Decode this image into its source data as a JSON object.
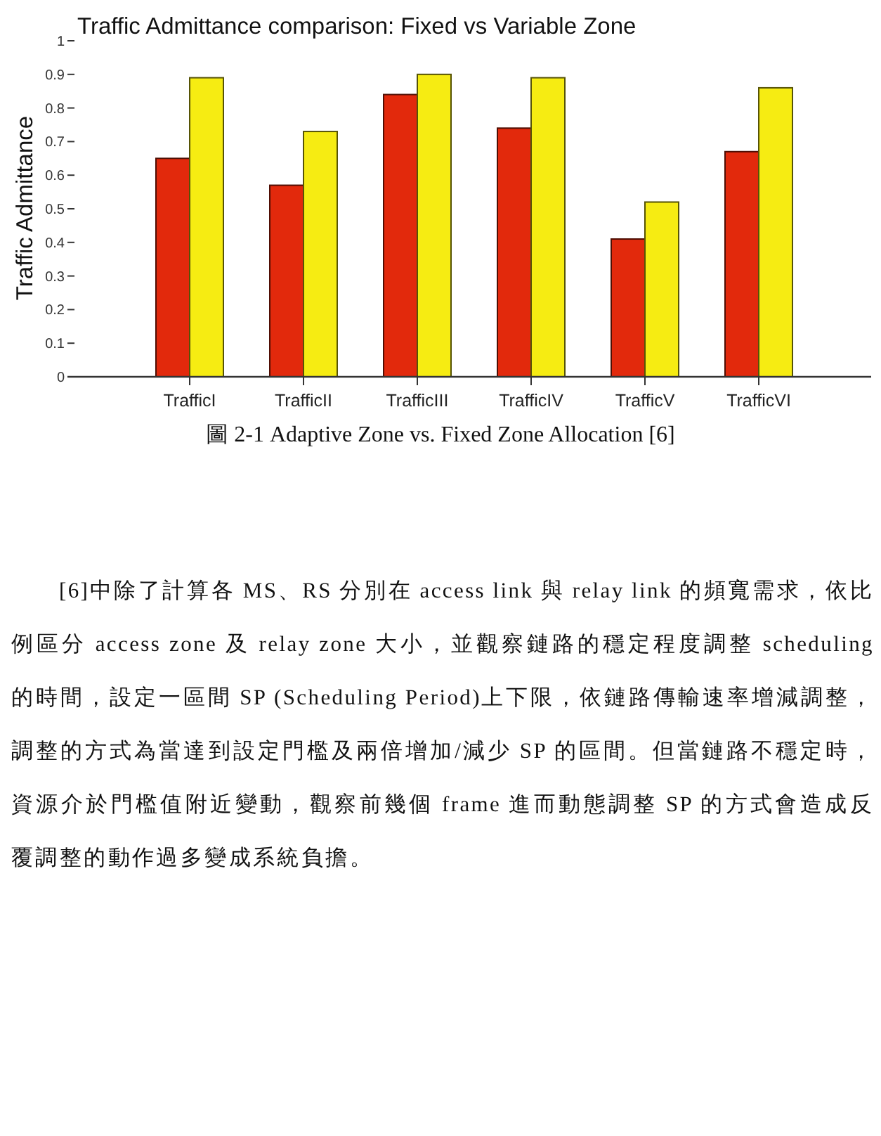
{
  "chart_data": {
    "type": "bar",
    "title": "Traffic Admittance comparison: Fixed vs Variable Zone",
    "ylabel": "Traffic Admittance",
    "categories": [
      "TrafficI",
      "TrafficII",
      "TrafficIII",
      "TrafficIV",
      "TrafficV",
      "TrafficVI"
    ],
    "series": [
      {
        "color": "#e2290c",
        "values": [
          0.65,
          0.57,
          0.84,
          0.74,
          0.41,
          0.67
        ]
      },
      {
        "color": "#f6ec12",
        "values": [
          0.89,
          0.73,
          0.9,
          0.89,
          0.52,
          0.86
        ]
      }
    ],
    "ylim": [
      0,
      1
    ],
    "yticks": [
      0,
      0.1,
      0.2,
      0.3,
      0.4,
      0.5,
      0.6,
      0.7,
      0.8,
      0.9,
      1
    ],
    "annotations": [
      "圖 2-1 Adaptive Zone vs. Fixed Zone Allocation [6]",
      "[6]中除了計算各 MS、RS 分別在 access link 與 relay link 的頻寬需求，依比例區分 access zone 及 relay zone 大小，並觀察鏈路的穩定程度調整 scheduling 的時間，設定一區間 SP (Scheduling Period)上下限，依鏈路傳輸速率增減調整，調整的方式為當達到設定門檻及兩倍增加/減少 SP 的區間。但當鏈路不穩定時，資源介於門檻值附近變動，觀察前幾個 frame 進而動態調整 SP 的方式會造成反覆調整的動作過多變成系統負擔。"
    ]
  }
}
